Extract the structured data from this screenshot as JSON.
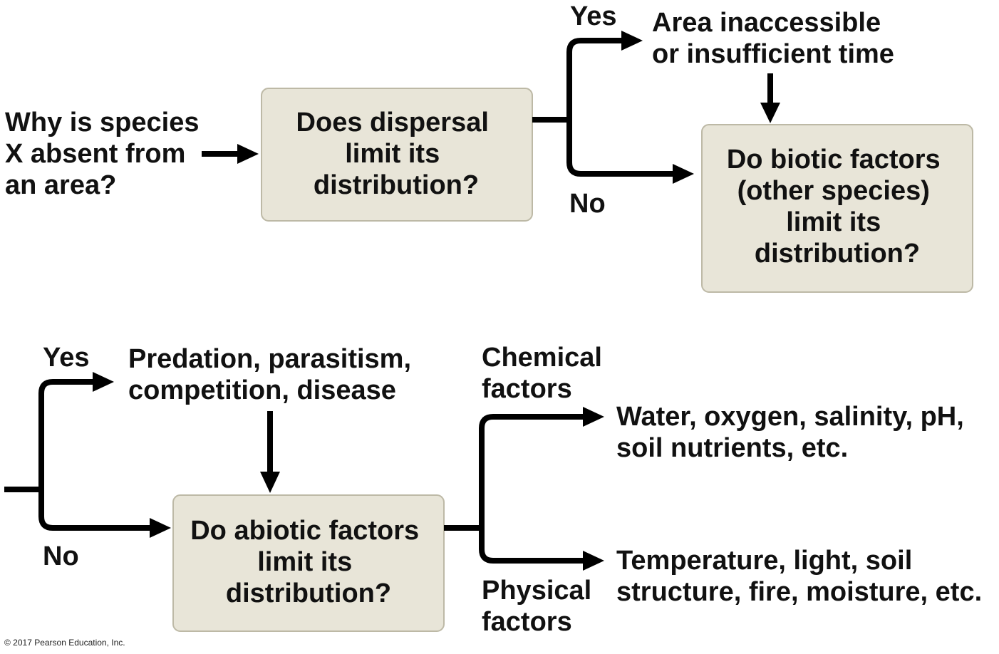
{
  "question": [
    "Why is species",
    "X absent from",
    "an area?"
  ],
  "dispersal_box": [
    "Does dispersal",
    "limit its",
    "distribution?"
  ],
  "dispersal_yes_label": "Yes",
  "dispersal_no_label": "No",
  "dispersal_yes_result": [
    "Area inaccessible",
    "or insufficient time"
  ],
  "biotic_box": [
    "Do biotic factors",
    "(other species)",
    "limit its",
    "distribution?"
  ],
  "biotic_yes_label": "Yes",
  "biotic_no_label": "No",
  "biotic_yes_result": [
    "Predation, parasitism,",
    "competition, disease"
  ],
  "abiotic_box": [
    "Do abiotic factors",
    "limit its",
    "distribution?"
  ],
  "chemical_label": [
    "Chemical",
    "factors"
  ],
  "chemical_result": [
    "Water, oxygen, salinity, pH,",
    "soil nutrients, etc."
  ],
  "physical_label": [
    "Physical",
    "factors"
  ],
  "physical_result": [
    "Temperature, light, soil",
    "structure, fire, moisture, etc."
  ],
  "copyright": "© 2017 Pearson Education, Inc."
}
